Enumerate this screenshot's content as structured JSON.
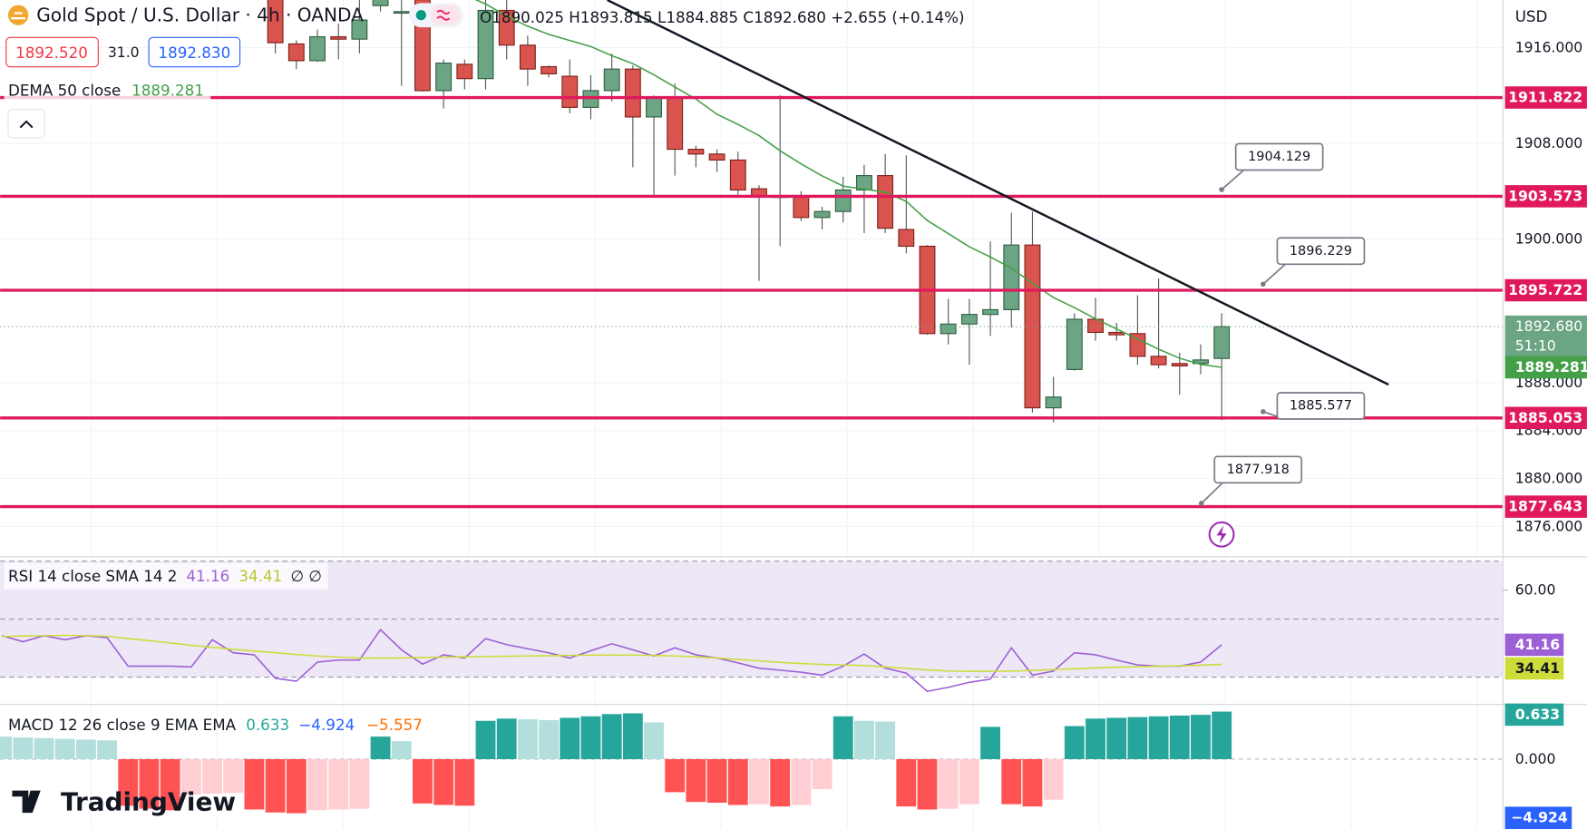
{
  "header": {
    "symbol": "Gold Spot / U.S. Dollar · 4h · OANDA",
    "ohlc": [
      {
        "label": "O",
        "value": "1890.025"
      },
      {
        "label": "H",
        "value": "1893.815"
      },
      {
        "label": "L",
        "value": "1884.885"
      },
      {
        "label": "C",
        "value": "1892.680"
      }
    ],
    "change": "+2.655 (+0.14%)",
    "bid": "1892.520",
    "spread": "31.0",
    "ask": "1892.830",
    "currency": "USD",
    "logo": "TradingView"
  },
  "chart_data": [
    {
      "type": "candlestick",
      "up_color": "#6ca583",
      "down_color": "#d9534f",
      "open": [
        null,
        null,
        null,
        null,
        null,
        null,
        null,
        null,
        null,
        null,
        null,
        null,
        null,
        1921,
        1916.3,
        1914.9,
        1916.9,
        1916.7,
        1919.5,
        1919,
        1920,
        1912.4,
        1914.6,
        1913.4,
        1919.1,
        1916.2,
        1914.4,
        1913.6,
        1911,
        1912.4,
        1914.2,
        1910.2,
        1911.8,
        1907.5,
        1907.1,
        1906.6,
        1904.2,
        1903.6,
        1903.6,
        1901.8,
        1902.3,
        1904.1,
        1905.3,
        1900.8,
        1899.4,
        1892.1,
        1892.9,
        1893.7,
        1894.1,
        1899.5,
        1885.9,
        1889.1,
        1893.3,
        1892.2,
        1892.1,
        1890.2,
        1889.6,
        1889.6,
        1890.025
      ],
      "high": [
        null,
        null,
        null,
        null,
        null,
        null,
        null,
        null,
        null,
        null,
        null,
        null,
        null,
        1922,
        1916.6,
        1917.5,
        1918,
        1920,
        1921,
        1920.5,
        1921,
        1915,
        1915,
        1920,
        1920,
        1917,
        1914.5,
        1915,
        1913.7,
        1915.5,
        1914.5,
        1912,
        1913,
        1907.8,
        1907.5,
        1907.3,
        1904.5,
        1912,
        1904,
        1902.7,
        1905.2,
        1906.2,
        1907.1,
        1907,
        1899.5,
        1895,
        1895,
        1899.8,
        1902.2,
        1902.3,
        1888.5,
        1893.8,
        1895.1,
        1893,
        1895.3,
        1896.7,
        1890.5,
        1891.2,
        1893.815
      ],
      "low": [
        null,
        null,
        null,
        null,
        null,
        null,
        null,
        null,
        null,
        null,
        null,
        null,
        null,
        1915.5,
        1914.2,
        1914.8,
        1915,
        1915.5,
        1919,
        1912.8,
        1912.3,
        1910.9,
        1912.5,
        1912.5,
        1915,
        1912.8,
        1913.5,
        1910.5,
        1910,
        1911.5,
        1906,
        1903.6,
        1905.3,
        1906,
        1905.6,
        1903.7,
        1896.5,
        1899.4,
        1901.5,
        1900.8,
        1901.4,
        1900.5,
        1900.5,
        1898.8,
        1892,
        1891.2,
        1889.5,
        1891.9,
        1892.6,
        1885.5,
        1884.7,
        1889,
        1891.5,
        1891.5,
        1889.5,
        1889.2,
        1887,
        1888.7,
        1884.885
      ],
      "close": [
        null,
        null,
        null,
        null,
        null,
        null,
        null,
        null,
        null,
        null,
        null,
        null,
        null,
        1916.4,
        1914.9,
        1916.9,
        1916.7,
        1918.3,
        1920.5,
        1919,
        1912.4,
        1914.7,
        1913.4,
        1919.1,
        1916.2,
        1914.2,
        1913.8,
        1911,
        1912.4,
        1914.2,
        1910.2,
        1911.8,
        1907.5,
        1907.1,
        1906.6,
        1904.1,
        1903.6,
        1903.6,
        1901.8,
        1902.3,
        1904.1,
        1905.3,
        1900.9,
        1899.4,
        1892.1,
        1892.9,
        1893.7,
        1894.1,
        1899.5,
        1885.9,
        1886.8,
        1893.3,
        1892.2,
        1892,
        1890.2,
        1889.5,
        1889.4,
        1889.9,
        1892.68
      ],
      "series": [
        {
          "name": "DEMA 50 close",
          "color": "#43a047",
          "values": [
            null,
            null,
            null,
            null,
            null,
            null,
            null,
            null,
            null,
            null,
            null,
            null,
            null,
            null,
            null,
            null,
            null,
            null,
            null,
            null,
            null,
            1921.2,
            1920.4,
            1919.64,
            1918.62,
            1917.78,
            1917.1,
            1916.59,
            1916.08,
            1915.32,
            1914.65,
            1913.72,
            1912.7,
            1911.69,
            1910.42,
            1909.58,
            1908.65,
            1907.38,
            1906.28,
            1905.27,
            1904.42,
            1904.17,
            1903.91,
            1903.15,
            1901.55,
            1900.45,
            1899.35,
            1898.5,
            1897.57,
            1896.3,
            1895.11,
            1894.27,
            1893.34,
            1892.49,
            1891.65,
            1890.8,
            1890.04,
            1889.53,
            1889.281
          ]
        }
      ],
      "levels": [
        1911.822,
        1903.573,
        1895.722,
        1885.053,
        1877.643
      ],
      "level_color": "#e0195f",
      "callouts": [
        1904.129,
        1896.229,
        1885.577,
        1877.918
      ],
      "last_price": {
        "value": 1892.68,
        "label": "1892.680"
      },
      "countdown": "51:10",
      "ylim": [
        1873.63,
        1919.97
      ],
      "yticks": [
        {
          "value": 1916,
          "label": "1916.000"
        },
        {
          "value": 1908,
          "label": "1908.000"
        },
        {
          "value": 1900,
          "label": "1900.000"
        },
        {
          "value": 1888,
          "label": "1888.000"
        },
        {
          "value": 1884,
          "label": "1884.000"
        },
        {
          "value": 1880,
          "label": "1880.000"
        },
        {
          "value": 1876,
          "label": "1876.000"
        }
      ],
      "grid": true
    },
    {
      "type": "line",
      "legend": "RSI 14 close SMA 14 2",
      "extra": "∅ ∅",
      "series": [
        {
          "color": "#9c5fd6",
          "values": [
            44.3,
            42.2,
            44.3,
            42.9,
            44.3,
            43.6,
            33.8,
            33.8,
            33.8,
            33.5,
            42.9,
            38.4,
            37.7,
            29.6,
            28.6,
            35.2,
            35.9,
            35.9,
            46.4,
            39.4,
            34.5,
            37.7,
            36.6,
            43.3,
            41.2,
            39.8,
            38.4,
            36.6,
            39.1,
            41.5,
            39.4,
            37.3,
            40.1,
            37.7,
            36.6,
            34.9,
            33.1,
            32.4,
            31.7,
            30.7,
            33.8,
            38.0,
            33.1,
            31.4,
            25.1,
            26.5,
            28.2,
            29.3,
            40.1,
            30.7,
            32.1,
            38.4,
            37.7,
            35.9,
            34.2,
            33.8,
            33.8,
            35.2,
            41.16
          ]
        },
        {
          "color": "#cddc39",
          "values": [
            44.0,
            44.2,
            44.3,
            44.4,
            44.3,
            44.1,
            43.3,
            42.6,
            41.8,
            41.0,
            40.3,
            39.6,
            39.0,
            38.4,
            37.8,
            37.3,
            36.9,
            36.6,
            36.6,
            36.6,
            36.8,
            36.9,
            37.0,
            37.1,
            37.2,
            37.3,
            37.4,
            37.5,
            37.6,
            37.6,
            37.6,
            37.5,
            37.3,
            37.0,
            36.6,
            36.1,
            35.6,
            35.1,
            34.7,
            34.4,
            34.2,
            34.0,
            33.5,
            33.0,
            32.5,
            32.1,
            32.0,
            32.0,
            32.1,
            32.3,
            32.6,
            32.9,
            33.2,
            33.4,
            33.6,
            33.8,
            33.9,
            34.1,
            34.41
          ]
        }
      ],
      "bands": [
        70,
        50,
        30
      ],
      "band_color": "#ede7f6",
      "ylim": [
        20.92,
        70.82
      ],
      "yticks": [
        {
          "value": 60,
          "label": "60.00"
        }
      ]
    },
    {
      "type": "bar",
      "legend": "MACD 12 26 close 9 EMA EMA",
      "legend_values": [
        {
          "text": "0.633",
          "color": "#26a69a"
        },
        {
          "text": "−4.924",
          "color": "#2962ff"
        },
        {
          "text": "−5.557",
          "color": "#ff6d00"
        }
      ],
      "values": [
        0.3,
        0.29,
        0.28,
        0.27,
        0.26,
        0.25,
        -0.62,
        -0.66,
        -0.68,
        -0.47,
        -0.46,
        -0.45,
        -0.67,
        -0.71,
        -0.72,
        -0.68,
        -0.67,
        -0.66,
        0.3,
        0.24,
        -0.59,
        -0.61,
        -0.62,
        0.51,
        0.54,
        0.53,
        0.52,
        0.55,
        0.57,
        0.6,
        0.61,
        0.49,
        -0.44,
        -0.57,
        -0.58,
        -0.61,
        -0.6,
        -0.63,
        -0.61,
        -0.4,
        0.57,
        0.51,
        0.5,
        -0.63,
        -0.67,
        -0.66,
        -0.6,
        0.43,
        -0.6,
        -0.63,
        -0.54,
        0.44,
        0.54,
        0.55,
        0.56,
        0.57,
        0.58,
        0.59,
        0.633
      ],
      "colors": {
        "up_strong": "#26a69a",
        "up_weak": "#b2dfdb",
        "down_strong": "#ff5252",
        "down_weak": "#ffcdd2"
      },
      "ylim": [
        -0.93,
        0.714
      ],
      "yticks": [
        {
          "value": 0,
          "label": "0.000"
        }
      ]
    }
  ]
}
